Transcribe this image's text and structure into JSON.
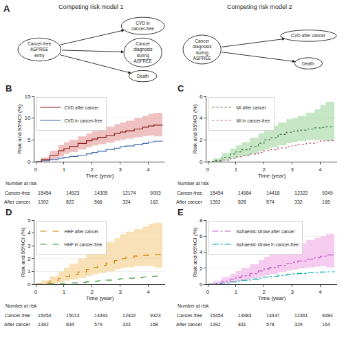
{
  "chart_data": [
    {
      "type": "diagram",
      "panel_label": "A",
      "title": "Competing risk model 1",
      "nodes": [
        "Cancer-free\nASPREE\nentry",
        "CVD in\ncancer-free",
        "Cancer\ndiagnosis\nduring\nASPREE",
        "Death"
      ],
      "arrows": [
        [
          0,
          1
        ],
        [
          0,
          2
        ],
        [
          0,
          3
        ]
      ]
    },
    {
      "type": "diagram",
      "title": "Competing risk model 2",
      "nodes": [
        "Cancer\ndiagnosis\nduring\nASPREE",
        "CVD after cancer",
        "Death"
      ],
      "arrows": [
        [
          0,
          1
        ],
        [
          0,
          2
        ]
      ]
    },
    {
      "type": "line",
      "panel_label": "B",
      "xlabel": "Time (year)",
      "ylabel": "Risk and 95%CI (%)",
      "xlim": [
        -0.05,
        4.6
      ],
      "xticks": [
        0,
        1,
        2,
        3,
        4
      ],
      "ylim": [
        0,
        15
      ],
      "yticks": [
        0,
        5,
        10,
        15
      ],
      "grid": "y",
      "legend": "upper left",
      "series": [
        {
          "name": "CVD in cancer-free",
          "color": "#4169b0",
          "line_style": "solid",
          "x": [
            0,
            0.2,
            0.5,
            0.8,
            1.0,
            1.2,
            1.5,
            1.8,
            2.0,
            2.2,
            2.5,
            2.8,
            3.0,
            3.2,
            3.5,
            3.8,
            4.0,
            4.2,
            4.5
          ],
          "values": [
            0,
            0.2,
            0.5,
            0.8,
            1.0,
            1.2,
            1.5,
            1.8,
            2.1,
            2.4,
            2.8,
            3.1,
            3.4,
            3.6,
            3.9,
            4.2,
            4.5,
            4.7,
            4.8
          ]
        },
        {
          "name": "CVD after cancer",
          "color": "#8b1a1a",
          "line_style": "solid",
          "x": [
            0,
            0.2,
            0.5,
            0.8,
            1.0,
            1.2,
            1.5,
            1.8,
            2.0,
            2.2,
            2.5,
            2.8,
            3.0,
            3.2,
            3.5,
            3.8,
            4.0,
            4.2,
            4.5
          ],
          "values": [
            0,
            0.5,
            1.5,
            2.5,
            3.0,
            3.5,
            4.2,
            4.8,
            5.2,
            5.6,
            6.0,
            6.5,
            6.8,
            7.1,
            7.5,
            7.9,
            8.2,
            8.4,
            8.5
          ],
          "band": {
            "color": "#e8a0a0",
            "lower": [
              0,
              0.1,
              0.5,
              1.2,
              1.8,
              2.2,
              2.8,
              3.3,
              3.7,
              4.0,
              4.4,
              4.8,
              5.1,
              5.3,
              5.6,
              5.9,
              6.0,
              5.8,
              5.5
            ],
            "upper": [
              0,
              1.0,
              2.5,
              3.8,
              4.5,
              5.0,
              5.8,
              6.5,
              7.0,
              7.4,
              8.0,
              8.6,
              9.0,
              9.4,
              10.0,
              10.5,
              11.0,
              11.2,
              11.5
            ]
          }
        }
      ],
      "risk_table": {
        "title": "Number at risk",
        "times": [
          0,
          1,
          2,
          3,
          4
        ],
        "rows": [
          {
            "name": "Cancer-free",
            "values": [
              15454,
              14923,
              14305,
              12174,
              9093
            ]
          },
          {
            "name": "After cancer",
            "values": [
              1392,
              822,
              566,
              324,
              162
            ]
          }
        ]
      }
    },
    {
      "type": "line",
      "panel_label": "C",
      "xlabel": "Time (year)",
      "ylabel": "Risk and 95%CI (%)",
      "xlim": [
        -0.05,
        4.6
      ],
      "xticks": [
        0,
        1,
        2,
        3,
        4
      ],
      "ylim": [
        0,
        6
      ],
      "yticks": [
        0,
        2,
        4,
        6
      ],
      "grid": "y",
      "legend": "upper left",
      "series": [
        {
          "name": "MI in cancer-free",
          "color": "#c06080",
          "line_style": "dotted",
          "x": [
            0,
            0.2,
            0.5,
            0.8,
            1.0,
            1.2,
            1.5,
            1.8,
            2.0,
            2.2,
            2.5,
            2.8,
            3.0,
            3.2,
            3.5,
            3.8,
            4.0,
            4.2,
            4.5
          ],
          "values": [
            0,
            0.05,
            0.15,
            0.3,
            0.45,
            0.55,
            0.7,
            0.85,
            1.0,
            1.1,
            1.25,
            1.4,
            1.5,
            1.6,
            1.7,
            1.8,
            1.9,
            1.92,
            1.95
          ]
        },
        {
          "name": "MI after cancer",
          "color": "#3a7a3a",
          "line_style": "dotted",
          "x": [
            0,
            0.2,
            0.5,
            0.8,
            1.0,
            1.2,
            1.5,
            1.8,
            2.0,
            2.2,
            2.5,
            2.8,
            3.0,
            3.2,
            3.5,
            3.8,
            4.0,
            4.2,
            4.5
          ],
          "values": [
            0,
            0.1,
            0.4,
            0.7,
            0.9,
            1.1,
            1.4,
            1.7,
            2.0,
            2.2,
            2.5,
            2.7,
            2.8,
            2.9,
            3.0,
            3.1,
            3.15,
            3.2,
            3.2
          ],
          "band": {
            "color": "#a8d8a8",
            "lower": [
              0,
              0.0,
              0.1,
              0.3,
              0.4,
              0.5,
              0.7,
              0.95,
              1.1,
              1.3,
              1.5,
              1.7,
              1.8,
              1.9,
              2.0,
              2.0,
              2.0,
              1.9,
              1.8
            ],
            "upper": [
              0,
              0.3,
              0.8,
              1.2,
              1.5,
              1.8,
              2.2,
              2.6,
              3.0,
              3.3,
              3.6,
              3.9,
              4.0,
              4.2,
              4.5,
              4.8,
              5.2,
              5.5,
              5.8
            ]
          }
        }
      ],
      "risk_table": {
        "title": "Number at risk",
        "times": [
          0,
          1,
          2,
          3,
          4
        ],
        "rows": [
          {
            "name": "Cancer-free",
            "values": [
              15454,
              14984,
              14418,
              12322,
              9249
            ]
          },
          {
            "name": "After cancer",
            "values": [
              1392,
              828,
              574,
              332,
              165
            ]
          }
        ]
      }
    },
    {
      "type": "line",
      "panel_label": "D",
      "xlabel": "Time (year)",
      "ylabel": "Risk and 95%CI (%)",
      "xlim": [
        -0.05,
        4.6
      ],
      "xticks": [
        0,
        1,
        2,
        3,
        4
      ],
      "ylim": [
        0,
        5
      ],
      "yticks": [
        0,
        1,
        2,
        3,
        4,
        5
      ],
      "grid": "y",
      "legend": "upper left",
      "series": [
        {
          "name": "HHF in cancer-free",
          "color": "#3a9a3a",
          "line_style": "dashed",
          "x": [
            0,
            0.2,
            0.5,
            0.8,
            1.0,
            1.2,
            1.5,
            1.8,
            2.0,
            2.2,
            2.5,
            2.8,
            3.0,
            3.2,
            3.5,
            3.8,
            4.0,
            4.2,
            4.5
          ],
          "values": [
            0,
            0.01,
            0.03,
            0.06,
            0.08,
            0.1,
            0.14,
            0.18,
            0.22,
            0.26,
            0.32,
            0.38,
            0.42,
            0.46,
            0.5,
            0.55,
            0.6,
            0.62,
            0.65
          ]
        },
        {
          "name": "HHF after cancer",
          "color": "#d4820a",
          "line_style": "dashed",
          "x": [
            0,
            0.2,
            0.5,
            0.8,
            1.0,
            1.2,
            1.5,
            1.8,
            2.0,
            2.2,
            2.5,
            2.8,
            3.0,
            3.2,
            3.5,
            3.8,
            4.0,
            4.2,
            4.5
          ],
          "values": [
            0,
            0.1,
            0.25,
            0.45,
            0.6,
            0.75,
            0.95,
            1.15,
            1.3,
            1.45,
            1.65,
            1.85,
            2.0,
            2.1,
            2.2,
            2.25,
            2.3,
            2.32,
            2.35
          ],
          "band": {
            "color": "#f5d090",
            "lower": [
              0,
              0.0,
              0.05,
              0.15,
              0.25,
              0.35,
              0.5,
              0.65,
              0.75,
              0.88,
              1.0,
              1.15,
              1.25,
              1.32,
              1.4,
              1.42,
              1.42,
              1.3,
              1.2
            ],
            "upper": [
              0,
              0.3,
              0.6,
              1.0,
              1.3,
              1.6,
              2.0,
              2.4,
              2.7,
              3.0,
              3.3,
              3.6,
              3.9,
              4.1,
              4.3,
              4.5,
              4.7,
              4.8,
              4.9
            ]
          }
        }
      ],
      "risk_table": {
        "title": "Number at risk",
        "times": [
          0,
          1,
          2,
          3,
          4
        ],
        "rows": [
          {
            "name": "Cancer-free",
            "values": [
              15454,
              15013,
              14493,
              12402,
              9323
            ]
          },
          {
            "name": "After cancer",
            "values": [
              1392,
              834,
              579,
              333,
              168
            ]
          }
        ]
      }
    },
    {
      "type": "line",
      "panel_label": "E",
      "xlabel": "Time (year)",
      "ylabel": "Risk and 95%CI (%)",
      "xlim": [
        -0.05,
        4.6
      ],
      "xticks": [
        0,
        1,
        2,
        3,
        4
      ],
      "ylim": [
        0,
        8
      ],
      "yticks": [
        0,
        2,
        4,
        6,
        8
      ],
      "grid": "y",
      "legend": "upper left",
      "series": [
        {
          "name": "Ischaemic stroke in cancer-free",
          "color": "#00aaaa",
          "line_style": "dashdot",
          "x": [
            0,
            0.2,
            0.5,
            0.8,
            1.0,
            1.2,
            1.5,
            1.8,
            2.0,
            2.2,
            2.5,
            2.8,
            3.0,
            3.2,
            3.5,
            3.8,
            4.0,
            4.2,
            4.5
          ],
          "values": [
            0,
            0.05,
            0.15,
            0.28,
            0.38,
            0.48,
            0.62,
            0.76,
            0.88,
            0.98,
            1.1,
            1.2,
            1.28,
            1.35,
            1.42,
            1.48,
            1.52,
            1.55,
            1.6
          ]
        },
        {
          "name": "Ischaemic stroke after cancer",
          "color": "#c060c0",
          "line_style": "dashdot",
          "x": [
            0,
            0.2,
            0.5,
            0.8,
            1.0,
            1.2,
            1.5,
            1.8,
            2.0,
            2.2,
            2.5,
            2.8,
            3.0,
            3.2,
            3.5,
            3.8,
            4.0,
            4.2,
            4.5
          ],
          "values": [
            0,
            0.1,
            0.35,
            0.6,
            0.82,
            1.05,
            1.35,
            1.65,
            1.9,
            2.1,
            2.35,
            2.6,
            2.75,
            2.9,
            3.1,
            3.3,
            3.5,
            3.65,
            3.8
          ],
          "band": {
            "color": "#f0b0e8",
            "lower": [
              0,
              0.0,
              0.05,
              0.2,
              0.35,
              0.5,
              0.7,
              0.95,
              1.1,
              1.28,
              1.5,
              1.7,
              1.82,
              1.95,
              2.1,
              2.2,
              2.25,
              2.1,
              2.0
            ],
            "upper": [
              0,
              0.4,
              0.85,
              1.3,
              1.65,
              2.0,
              2.5,
              3.0,
              3.4,
              3.7,
              4.1,
              4.5,
              4.8,
              5.1,
              5.5,
              5.8,
              6.0,
              6.3,
              6.5
            ]
          }
        }
      ],
      "risk_table": {
        "title": "Number at risk",
        "times": [
          0,
          1,
          2,
          3,
          4
        ],
        "rows": [
          {
            "name": "Cancer-free",
            "values": [
              15454,
              14983,
              14437,
              12361,
              9284
            ]
          },
          {
            "name": "After cancer",
            "values": [
              1392,
              831,
              578,
              329,
              164
            ]
          }
        ]
      }
    }
  ]
}
